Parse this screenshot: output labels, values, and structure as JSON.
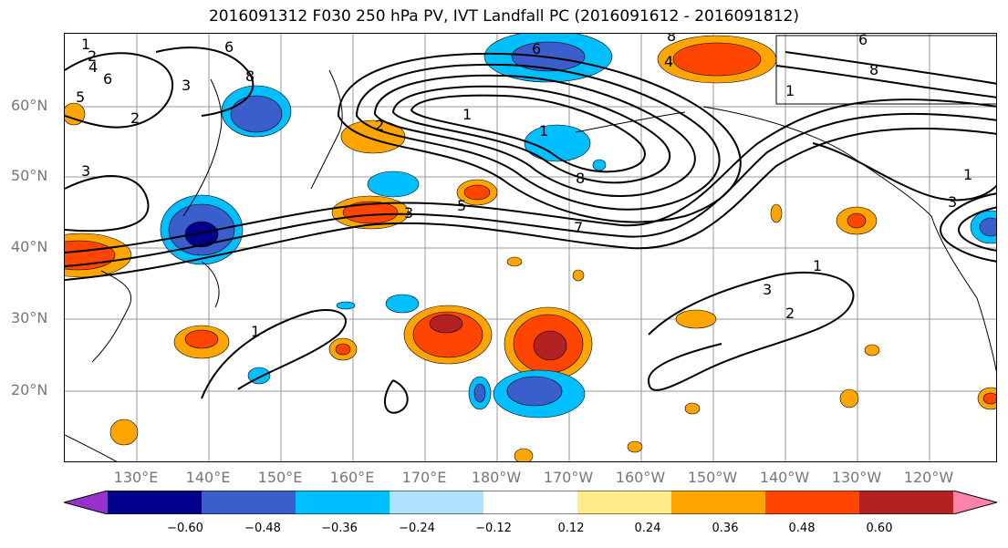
{
  "title": "2016091312 F030 250 hPa PV, IVT Landfall PC (2016091612 - 2016091812)",
  "map": {
    "lat_labels": [
      "60°N",
      "50°N",
      "40°N",
      "30°N",
      "20°N"
    ],
    "lon_labels": [
      "130°E",
      "140°E",
      "150°E",
      "160°E",
      "170°E",
      "180°W",
      "170°W",
      "160°W",
      "150°W",
      "140°W",
      "130°W",
      "120°W"
    ],
    "contour_labels": [
      "1",
      "2",
      "4",
      "6",
      "5",
      "3",
      "6",
      "8",
      "2",
      "3",
      "1",
      "3",
      "5",
      "8",
      "7",
      "8",
      "6",
      "1",
      "1",
      "2",
      "1",
      "4",
      "3",
      "6",
      "8",
      "1",
      "3",
      "2",
      "1"
    ]
  },
  "colorbar": {
    "ticks": [
      "−0.60",
      "−0.48",
      "−0.36",
      "−0.24",
      "−0.12",
      "0.12",
      "0.24",
      "0.36",
      "0.48",
      "0.60"
    ],
    "colors": [
      "#9932cc",
      "#00008b",
      "#3a5fcd",
      "#00bfff",
      "#b0e2ff",
      "#ffffff",
      "#ffec8b",
      "#ffa500",
      "#ff4500",
      "#b22222",
      "#ff82ab"
    ]
  }
}
